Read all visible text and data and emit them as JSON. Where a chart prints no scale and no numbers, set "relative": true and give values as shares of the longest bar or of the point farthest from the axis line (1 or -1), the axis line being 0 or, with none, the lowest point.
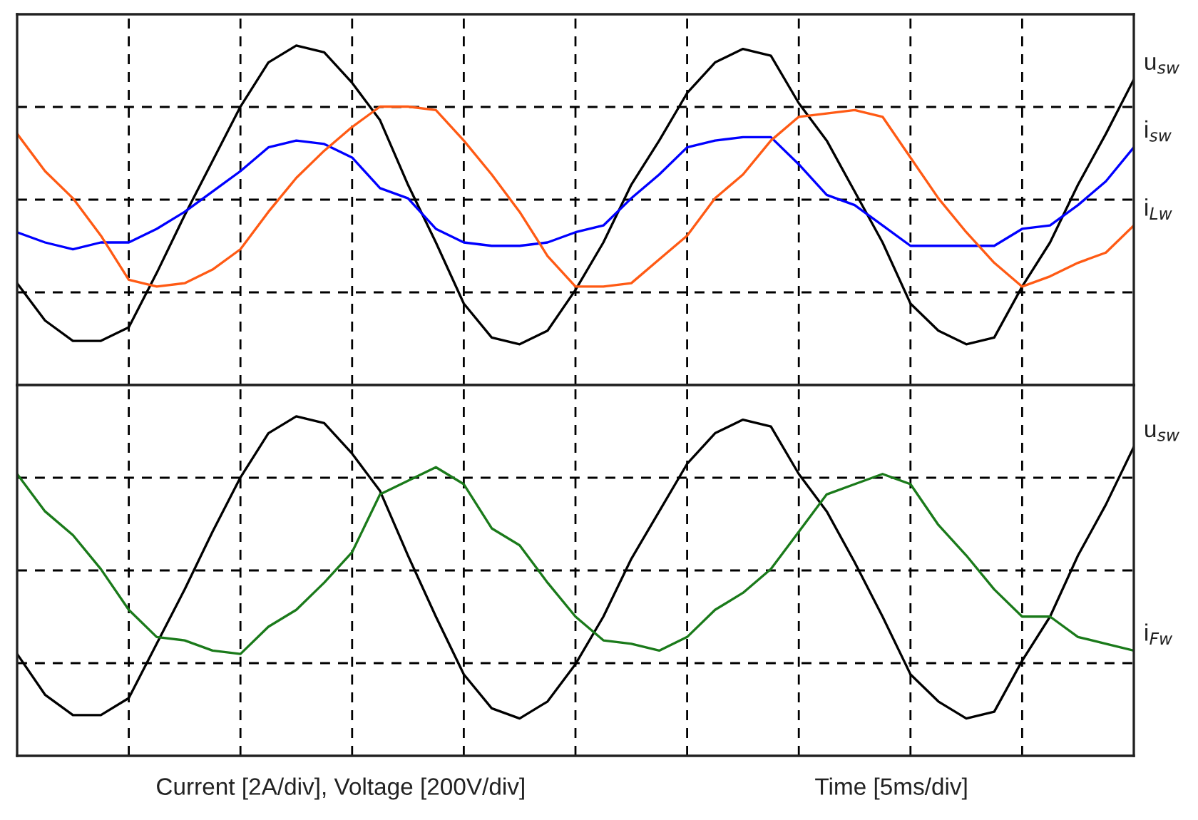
{
  "chart_data": [
    {
      "type": "line",
      "relative": true,
      "grid": true,
      "categories": [
        null,
        null,
        null,
        null,
        null,
        null,
        null,
        null,
        null,
        null,
        null,
        null,
        null,
        null,
        null,
        null,
        null,
        null,
        null,
        null,
        null,
        null,
        null,
        null,
        null,
        null,
        null,
        null,
        null,
        null,
        null,
        null,
        null,
        null,
        null,
        null,
        null,
        null,
        null,
        null,
        null
      ],
      "series": [
        {
          "name": "u$_{sw}$",
          "color": "#000000",
          "values": [
            0.3,
            0.19,
            0.13,
            0.13,
            0.17,
            0.33,
            0.5,
            0.66,
            0.82,
            0.95,
            1.0,
            0.98,
            0.89,
            0.78,
            0.59,
            0.42,
            0.24,
            0.14,
            0.12,
            0.16,
            0.28,
            0.42,
            0.59,
            0.72,
            0.86,
            0.95,
            0.99,
            0.97,
            0.83,
            0.72,
            0.57,
            0.42,
            0.24,
            0.16,
            0.12,
            0.14,
            0.29,
            0.42,
            0.59,
            0.74,
            0.9
          ]
        },
        {
          "name": "i$_{sw}$",
          "color": "#0000ff",
          "values": [
            0.45,
            0.42,
            0.4,
            0.42,
            0.42,
            0.46,
            0.51,
            0.57,
            0.63,
            0.7,
            0.72,
            0.71,
            0.67,
            0.58,
            0.55,
            0.46,
            0.42,
            0.41,
            0.41,
            0.42,
            0.45,
            0.47,
            0.55,
            0.62,
            0.7,
            0.72,
            0.73,
            0.73,
            0.65,
            0.56,
            0.53,
            0.47,
            0.41,
            0.41,
            0.41,
            0.41,
            0.46,
            0.47,
            0.53,
            0.6,
            0.7
          ]
        },
        {
          "name": "i$_{Lw}$",
          "color": "#ff5a14",
          "values": [
            0.74,
            0.63,
            0.55,
            0.44,
            0.31,
            0.29,
            0.3,
            0.34,
            0.4,
            0.51,
            0.61,
            0.69,
            0.76,
            0.82,
            0.82,
            0.81,
            0.72,
            0.62,
            0.51,
            0.38,
            0.29,
            0.29,
            0.3,
            0.37,
            0.44,
            0.55,
            0.62,
            0.72,
            0.79,
            0.8,
            0.81,
            0.79,
            0.67,
            0.55,
            0.45,
            0.36,
            0.29,
            0.32,
            0.36,
            0.39,
            0.47
          ]
        }
      ]
    },
    {
      "type": "line",
      "relative": true,
      "grid": true,
      "categories": [
        null,
        null,
        null,
        null,
        null,
        null,
        null,
        null,
        null,
        null,
        null,
        null,
        null,
        null,
        null,
        null,
        null,
        null,
        null,
        null,
        null,
        null,
        null,
        null,
        null,
        null,
        null,
        null,
        null,
        null,
        null,
        null,
        null,
        null,
        null,
        null,
        null,
        null,
        null,
        null,
        null
      ],
      "series": [
        {
          "name": "u$_{sw}$",
          "color": "#000000",
          "values": [
            0.3,
            0.18,
            0.12,
            0.12,
            0.17,
            0.33,
            0.49,
            0.66,
            0.82,
            0.95,
            1.0,
            0.98,
            0.89,
            0.78,
            0.59,
            0.41,
            0.24,
            0.14,
            0.11,
            0.16,
            0.27,
            0.41,
            0.58,
            0.72,
            0.86,
            0.95,
            0.99,
            0.97,
            0.83,
            0.72,
            0.57,
            0.41,
            0.24,
            0.16,
            0.11,
            0.13,
            0.28,
            0.41,
            0.59,
            0.74,
            0.91
          ]
        },
        {
          "name": "i$_{Fw}$",
          "color": "#1a7a1a",
          "values": [
            0.83,
            0.72,
            0.65,
            0.55,
            0.43,
            0.35,
            0.34,
            0.31,
            0.3,
            0.38,
            0.43,
            0.51,
            0.6,
            0.77,
            0.81,
            0.85,
            0.8,
            0.67,
            0.62,
            0.51,
            0.41,
            0.34,
            0.33,
            0.31,
            0.35,
            0.43,
            0.48,
            0.55,
            0.66,
            0.77,
            0.8,
            0.83,
            0.8,
            0.68,
            0.59,
            0.49,
            0.41,
            0.41,
            0.35,
            0.33,
            0.31
          ]
        }
      ],
      "annotations": [
        "Current [2A/div], Voltage [200V/div]",
        "Time [5ms/div]"
      ]
    }
  ]
}
